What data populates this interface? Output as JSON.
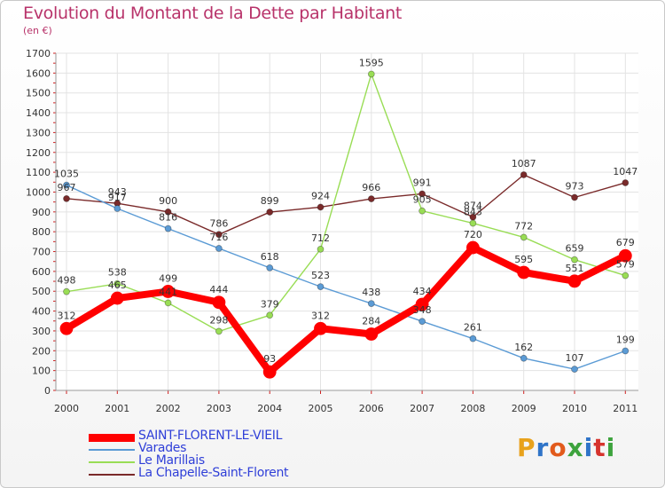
{
  "title": "Evolution du Montant de la Dette par Habitant",
  "subtitle": "(en €)",
  "logo": {
    "text": "Proxiti",
    "colors": [
      "#e8a21c",
      "#2f74c8",
      "#e25b1c",
      "#3da33d",
      "#2f74c8",
      "#d6342e",
      "#3da33d"
    ]
  },
  "chart_data": {
    "type": "line",
    "title": "Evolution du Montant de la Dette par Habitant",
    "subtitle": "(en €)",
    "x": [
      "2000",
      "2001",
      "2002",
      "2003",
      "2004",
      "2005",
      "2006",
      "2007",
      "2008",
      "2009",
      "2010",
      "2011"
    ],
    "ylim": [
      0,
      1700
    ],
    "yticks": [
      0,
      100,
      200,
      300,
      400,
      500,
      600,
      700,
      800,
      900,
      1000,
      1100,
      1200,
      1300,
      1400,
      1500,
      1600,
      1700
    ],
    "grid": true,
    "legend_position": "bottom-left",
    "series": [
      {
        "name": "SAINT-FLORENT-LE-VIEIL",
        "color": "#ff0000",
        "values": [
          312,
          465,
          499,
          444,
          93,
          312,
          284,
          434,
          720,
          595,
          551,
          679
        ]
      },
      {
        "name": "Varades",
        "color": "#5b9bd5",
        "values": [
          1035,
          917,
          816,
          716,
          618,
          523,
          438,
          348,
          261,
          162,
          107,
          199
        ]
      },
      {
        "name": "Le Marillais",
        "color": "#99dd55",
        "values": [
          498,
          538,
          441,
          298,
          379,
          712,
          1595,
          905,
          843,
          772,
          659,
          579
        ]
      },
      {
        "name": "La Chapelle-Saint-Florent",
        "color": "#7a2a2a",
        "values": [
          967,
          943,
          900,
          786,
          899,
          924,
          966,
          991,
          874,
          1087,
          973,
          1047
        ]
      }
    ]
  }
}
